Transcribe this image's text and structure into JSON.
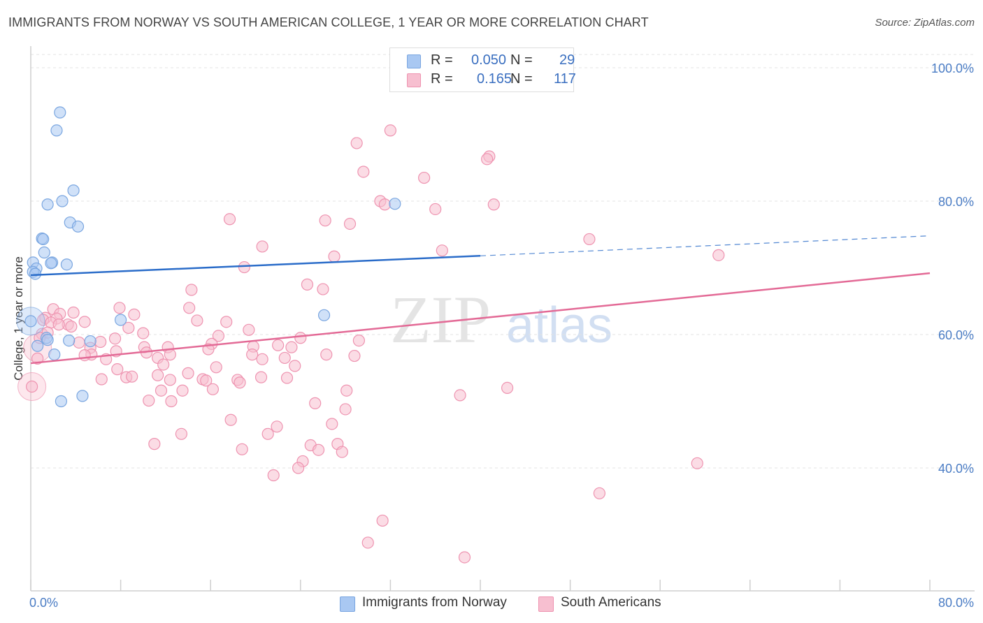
{
  "title": "IMMIGRANTS FROM NORWAY VS SOUTH AMERICAN COLLEGE, 1 YEAR OR MORE CORRELATION CHART",
  "source": "Source: ZipAtlas.com",
  "watermark": {
    "zip": "ZIP",
    "atlas": "atlas"
  },
  "legend": {
    "rows": [
      {
        "r_label": "R =",
        "r_value": "0.050",
        "n_label": "N =",
        "n_value": "29",
        "color": "#a9c8f2",
        "border": "#7aa6e0"
      },
      {
        "r_label": "R =",
        "r_value": "0.165",
        "n_label": "N =",
        "n_value": "117",
        "color": "#f7bfd0",
        "border": "#ee93b0"
      }
    ]
  },
  "bottom_legend": [
    {
      "label": "Immigrants from Norway",
      "color": "#a9c8f2",
      "border": "#7aa6e0"
    },
    {
      "label": "South Americans",
      "color": "#f7bfd0",
      "border": "#ee93b0"
    }
  ],
  "chart_data": {
    "type": "scatter",
    "xlabel": "",
    "ylabel": "College, 1 year or more",
    "xlim": [
      0,
      80
    ],
    "ylim": [
      20,
      100
    ],
    "x_tick_labels": [
      {
        "value": 0,
        "label": "0.0%"
      },
      {
        "value": 80,
        "label": "80.0%"
      }
    ],
    "y_tick_labels": [
      {
        "value": 100,
        "label": "100.0%"
      },
      {
        "value": 80,
        "label": "80.0%"
      },
      {
        "value": 60,
        "label": "60.0%"
      },
      {
        "value": 40,
        "label": "40.0%"
      }
    ],
    "grid": true,
    "series": [
      {
        "name": "Immigrants from Norway",
        "color": "#7aa6e0",
        "fill": "rgba(169,200,242,0.55)",
        "line_color": "#2a6cc9",
        "trend": {
          "x0": 0,
          "y0": 68.9,
          "x1": 40,
          "y1": 71.8,
          "dash_to_x": 80,
          "dash_to_y": 74.8
        },
        "points": [
          [
            2.6,
            93.3
          ],
          [
            2.3,
            90.6
          ],
          [
            3.8,
            81.6
          ],
          [
            1.5,
            79.5
          ],
          [
            2.8,
            80.0
          ],
          [
            3.5,
            76.8
          ],
          [
            4.2,
            76.2
          ],
          [
            1.0,
            74.4
          ],
          [
            1.1,
            74.3
          ],
          [
            1.2,
            72.3
          ],
          [
            1.9,
            70.8
          ],
          [
            1.8,
            70.7
          ],
          [
            3.2,
            70.5
          ],
          [
            0.2,
            70.8
          ],
          [
            0.5,
            69.9
          ],
          [
            0.2,
            69.4
          ],
          [
            0.4,
            69.1
          ],
          [
            8.0,
            62.2
          ],
          [
            1.4,
            59.5
          ],
          [
            1.5,
            59.2
          ],
          [
            3.4,
            59.1
          ],
          [
            5.3,
            59.0
          ],
          [
            0.6,
            58.3
          ],
          [
            2.1,
            57.0
          ],
          [
            4.6,
            50.8
          ],
          [
            2.7,
            50.0
          ],
          [
            32.4,
            79.6
          ],
          [
            26.1,
            62.9
          ],
          [
            0.0,
            62.0
          ]
        ],
        "big_points": [
          [
            0.0,
            62.0
          ]
        ]
      },
      {
        "name": "South Americans",
        "color": "#ee93b0",
        "fill": "rgba(247,191,208,0.55)",
        "line_color": "#e36a96",
        "trend": {
          "x0": 0,
          "y0": 55.7,
          "x1": 80,
          "y1": 69.2
        },
        "points": [
          [
            32.0,
            90.6
          ],
          [
            29.0,
            88.7
          ],
          [
            40.8,
            86.7
          ],
          [
            40.6,
            86.3
          ],
          [
            29.6,
            84.4
          ],
          [
            35.0,
            83.5
          ],
          [
            31.1,
            80.0
          ],
          [
            31.5,
            79.5
          ],
          [
            41.2,
            79.5
          ],
          [
            36.0,
            78.8
          ],
          [
            17.7,
            77.3
          ],
          [
            26.2,
            77.1
          ],
          [
            28.4,
            76.6
          ],
          [
            49.7,
            74.3
          ],
          [
            20.6,
            73.2
          ],
          [
            36.6,
            72.6
          ],
          [
            61.2,
            71.9
          ],
          [
            27.0,
            71.7
          ],
          [
            19.0,
            70.1
          ],
          [
            24.6,
            67.5
          ],
          [
            26.0,
            66.8
          ],
          [
            14.3,
            66.7
          ],
          [
            14.1,
            64.0
          ],
          [
            7.9,
            64.0
          ],
          [
            2.0,
            63.8
          ],
          [
            3.8,
            63.3
          ],
          [
            2.6,
            63.1
          ],
          [
            9.2,
            63.0
          ],
          [
            1.3,
            62.5
          ],
          [
            2.3,
            62.4
          ],
          [
            1.1,
            62.2
          ],
          [
            14.8,
            62.1
          ],
          [
            17.4,
            61.9
          ],
          [
            4.8,
            61.9
          ],
          [
            1.8,
            61.8
          ],
          [
            3.3,
            61.5
          ],
          [
            3.6,
            61.2
          ],
          [
            8.7,
            61.0
          ],
          [
            19.4,
            60.7
          ],
          [
            10.0,
            60.2
          ],
          [
            1.0,
            60.1
          ],
          [
            16.7,
            59.8
          ],
          [
            24.0,
            59.5
          ],
          [
            7.5,
            59.4
          ],
          [
            29.2,
            59.1
          ],
          [
            6.2,
            58.9
          ],
          [
            4.3,
            58.8
          ],
          [
            16.1,
            58.6
          ],
          [
            22.0,
            58.4
          ],
          [
            19.8,
            58.2
          ],
          [
            23.2,
            58.1
          ],
          [
            12.2,
            58.1
          ],
          [
            10.1,
            58.1
          ],
          [
            5.3,
            58.0
          ],
          [
            15.8,
            57.8
          ],
          [
            7.6,
            57.5
          ],
          [
            10.3,
            57.3
          ],
          [
            19.7,
            57.0
          ],
          [
            26.3,
            57.0
          ],
          [
            5.4,
            57.0
          ],
          [
            12.4,
            57.0
          ],
          [
            4.8,
            56.9
          ],
          [
            28.8,
            56.8
          ],
          [
            22.6,
            56.5
          ],
          [
            11.3,
            56.5
          ],
          [
            20.6,
            56.3
          ],
          [
            6.7,
            56.3
          ],
          [
            23.5,
            55.3
          ],
          [
            11.8,
            55.5
          ],
          [
            16.5,
            55.1
          ],
          [
            7.7,
            54.8
          ],
          [
            14.0,
            54.2
          ],
          [
            11.3,
            53.9
          ],
          [
            22.8,
            53.5
          ],
          [
            20.5,
            53.6
          ],
          [
            8.5,
            53.6
          ],
          [
            9.0,
            53.7
          ],
          [
            15.3,
            53.3
          ],
          [
            6.3,
            53.3
          ],
          [
            12.4,
            53.2
          ],
          [
            18.4,
            53.2
          ],
          [
            15.6,
            53.1
          ],
          [
            18.6,
            52.8
          ],
          [
            42.4,
            52.0
          ],
          [
            11.6,
            51.6
          ],
          [
            13.5,
            51.6
          ],
          [
            16.2,
            51.8
          ],
          [
            28.1,
            51.6
          ],
          [
            38.2,
            50.9
          ],
          [
            10.5,
            50.1
          ],
          [
            12.5,
            50.0
          ],
          [
            25.3,
            49.7
          ],
          [
            28.0,
            48.8
          ],
          [
            17.8,
            47.2
          ],
          [
            26.8,
            46.6
          ],
          [
            21.9,
            46.2
          ],
          [
            13.4,
            45.1
          ],
          [
            21.1,
            45.1
          ],
          [
            11.0,
            43.6
          ],
          [
            24.9,
            43.4
          ],
          [
            27.3,
            43.6
          ],
          [
            18.8,
            42.8
          ],
          [
            25.6,
            42.7
          ],
          [
            27.7,
            42.4
          ],
          [
            59.3,
            40.7
          ],
          [
            24.2,
            41.0
          ],
          [
            23.8,
            40.0
          ],
          [
            21.6,
            38.9
          ],
          [
            50.6,
            36.2
          ],
          [
            31.3,
            32.1
          ],
          [
            30.0,
            28.8
          ],
          [
            38.6,
            26.6
          ],
          [
            2.5,
            61.5
          ],
          [
            1.5,
            60.3
          ],
          [
            0.8,
            59.5
          ],
          [
            0.6,
            56.4
          ],
          [
            0.1,
            52.2
          ]
        ],
        "big_points": [
          [
            0.1,
            52.2
          ],
          [
            0.6,
            58.0
          ]
        ]
      }
    ]
  }
}
